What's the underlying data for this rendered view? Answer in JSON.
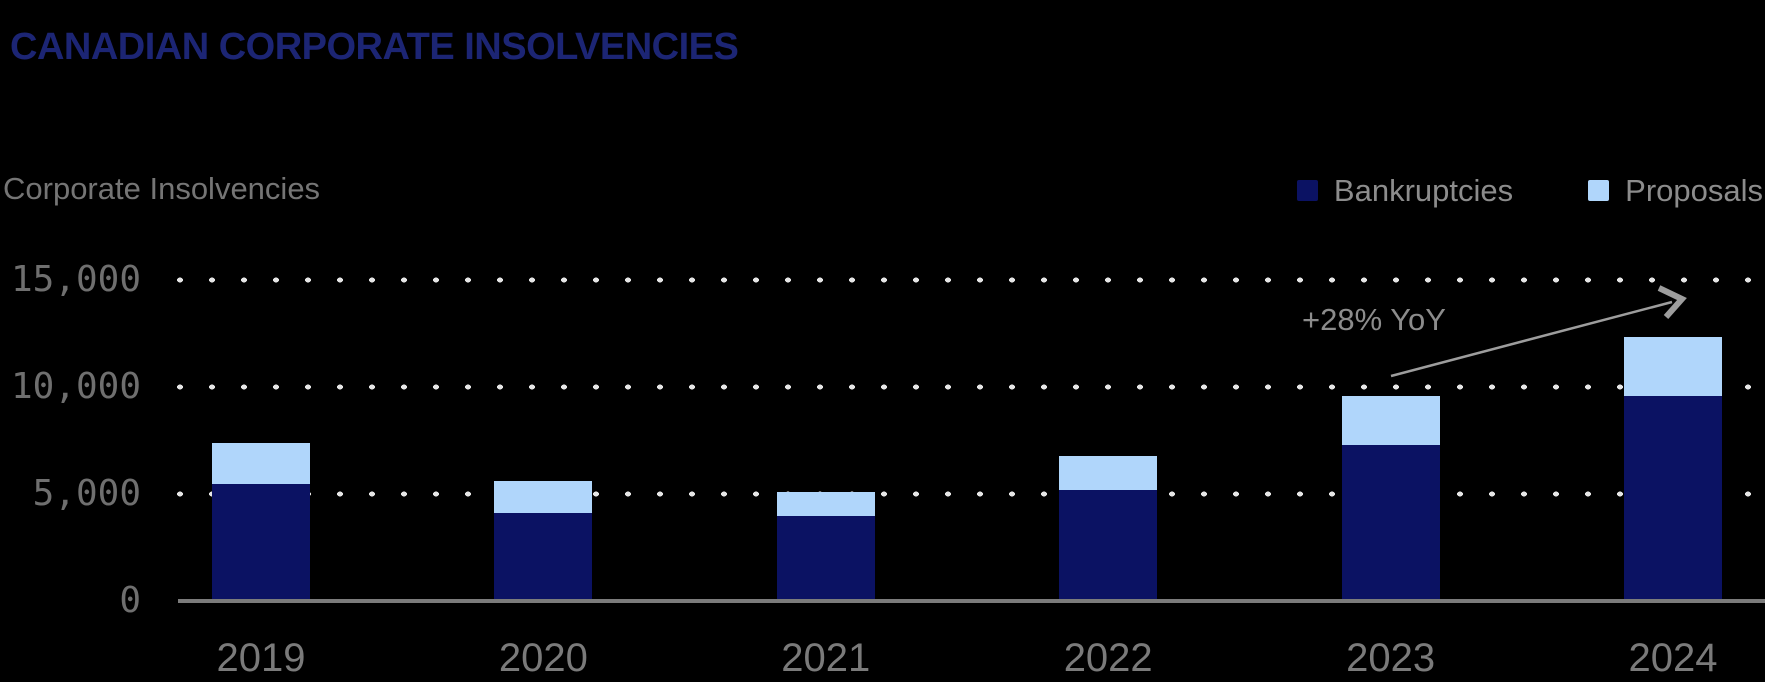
{
  "page_title": "CANADIAN CORPORATE INSOLVENCIES",
  "chart_data": {
    "type": "bar",
    "stacked": true,
    "subtitle_label": "Corporate Insolvencies",
    "categories": [
      "2019",
      "2020",
      "2021",
      "2022",
      "2023",
      "2024"
    ],
    "series": [
      {
        "name": "Bankruptcies",
        "color": "#0b1263",
        "values": [
          5450,
          4100,
          3950,
          5200,
          7300,
          9600
        ]
      },
      {
        "name": "Proposals",
        "color": "#b0d6fb",
        "values": [
          1900,
          1500,
          1100,
          1600,
          2300,
          2750
        ]
      }
    ],
    "ylim": [
      0,
      15000
    ],
    "yticks": [
      0,
      5000,
      10000,
      15000
    ],
    "ytick_labels": [
      "0",
      "5,000",
      "10,000",
      "15,000"
    ],
    "grid": "dotted-horizontal",
    "legend_position": "top-right",
    "annotation": {
      "text": "+28% YoY"
    }
  },
  "colors": {
    "background": "#000000",
    "title": "#1c2574",
    "bankruptcies": "#0b1263",
    "proposals": "#b0d6fb",
    "axis_line": "#7b7b7b",
    "grid_dots": "#e6e6e6",
    "muted_text": "#757575",
    "tick_text": "#6f6f6f",
    "legend_text": "#8c8c8c",
    "annotation_text": "#8c8c8c",
    "arrow": "#9d9d9d"
  }
}
